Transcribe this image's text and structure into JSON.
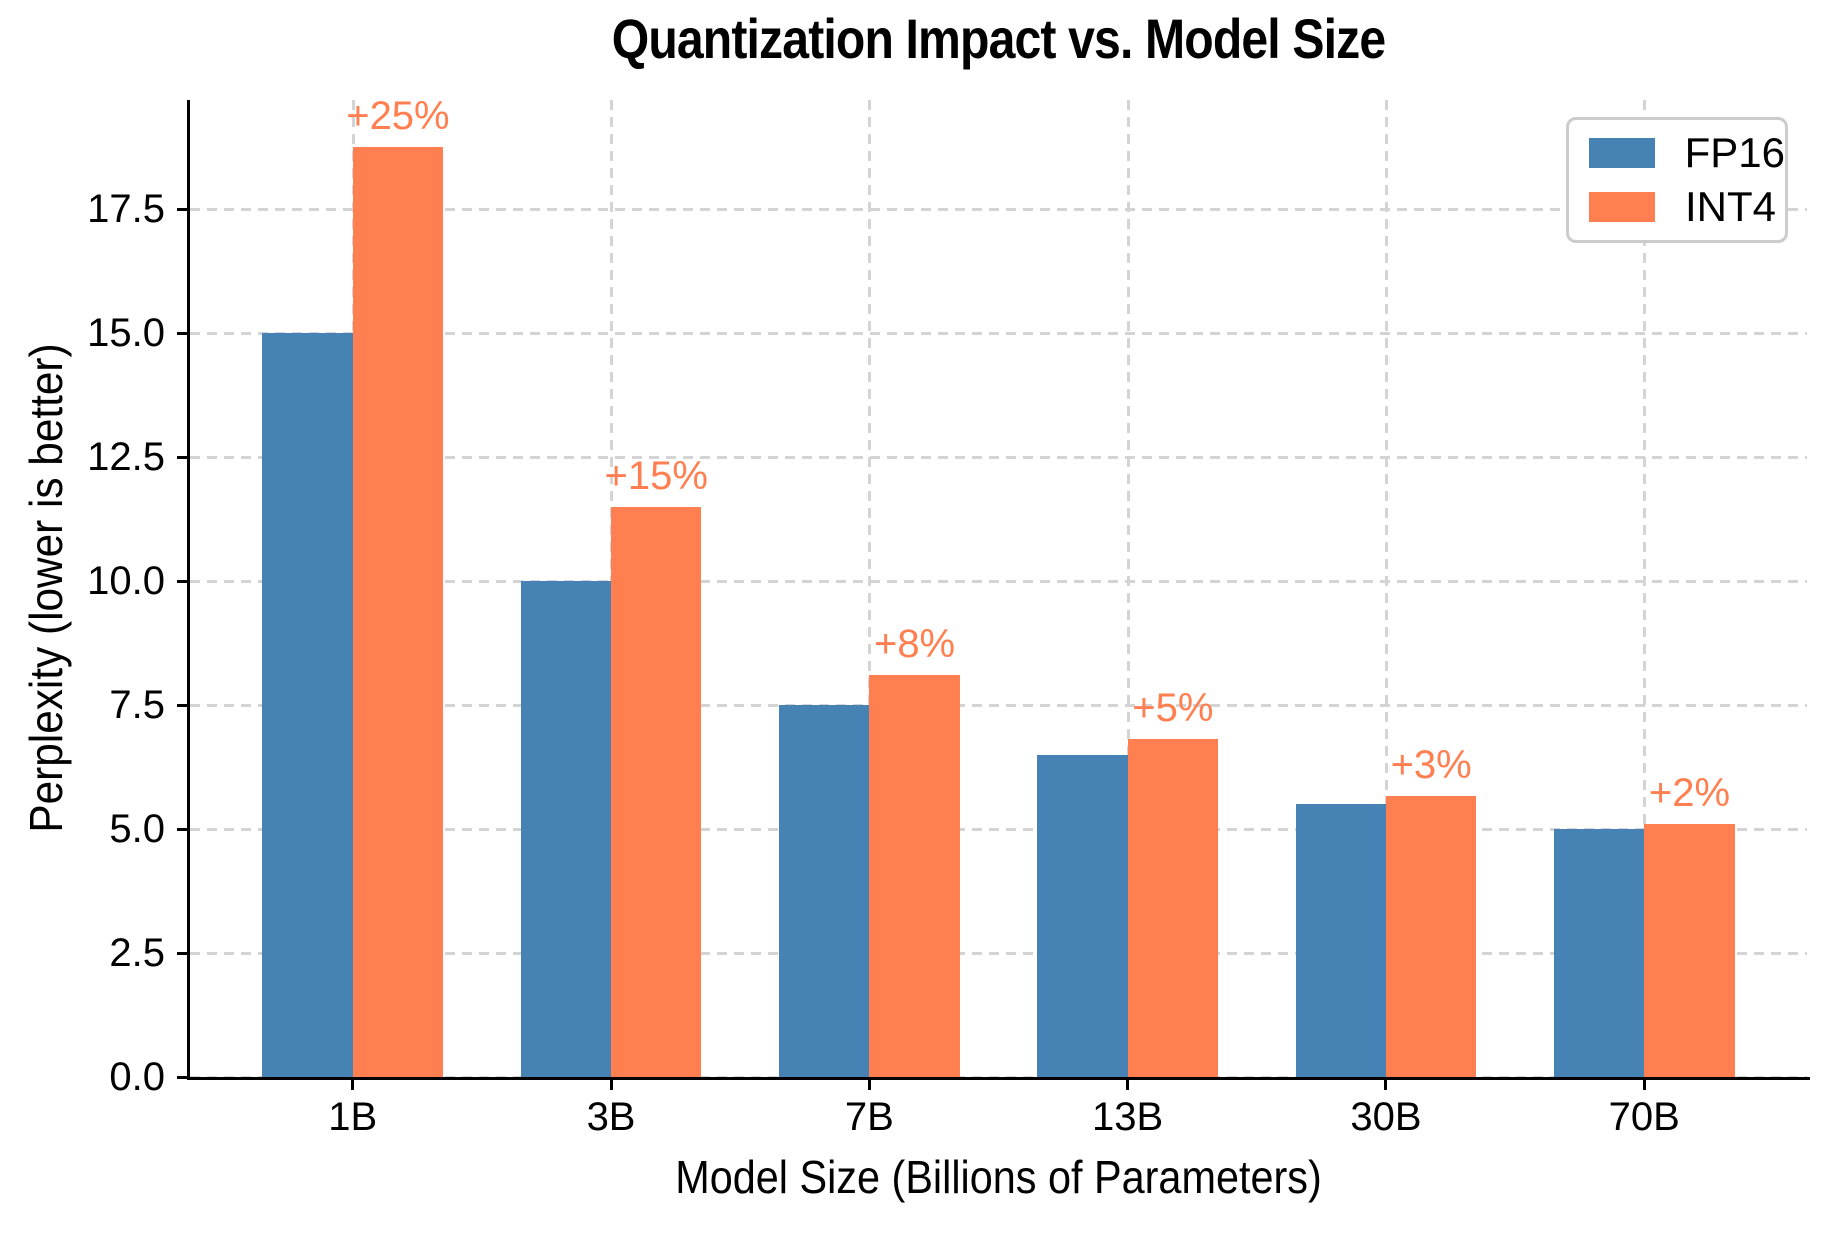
{
  "figure": {
    "background": "#ffffff"
  },
  "chart_data": {
    "type": "bar",
    "title": "Quantization Impact vs. Model Size",
    "xlabel": "Model Size (Billions of Parameters)",
    "ylabel": "Perplexity (lower is better)",
    "categories": [
      "1B",
      "3B",
      "7B",
      "13B",
      "30B",
      "70B"
    ],
    "series": [
      {
        "name": "FP16",
        "color": "#4682B4",
        "values": [
          15.0,
          10.0,
          7.5,
          6.5,
          5.5,
          5.0
        ]
      },
      {
        "name": "INT4",
        "color": "#FF7F50",
        "values": [
          18.75,
          11.5,
          8.1,
          6.825,
          5.665,
          5.1
        ]
      }
    ],
    "bar_labels": {
      "color": "#FF7F50",
      "values": [
        "+25%",
        "+15%",
        "+8%",
        "+5%",
        "+3%",
        "+2%"
      ]
    },
    "ytick_labels": [
      "0.0",
      "2.5",
      "5.0",
      "7.5",
      "10.0",
      "12.5",
      "15.0",
      "17.5"
    ],
    "yticks": [
      0,
      2.5,
      5,
      7.5,
      10,
      12.5,
      15,
      17.5
    ],
    "ylim": [
      0,
      19.7
    ],
    "grid": {
      "show": true,
      "style": "dashed",
      "color": "#d4d4d4"
    },
    "axis_color": "#000000",
    "legend": {
      "position": "upper right",
      "entries": [
        "FP16",
        "INT4"
      ],
      "border_color": "#cccccc",
      "background": "#ffffff"
    },
    "bar_width_data_units": 0.35
  }
}
